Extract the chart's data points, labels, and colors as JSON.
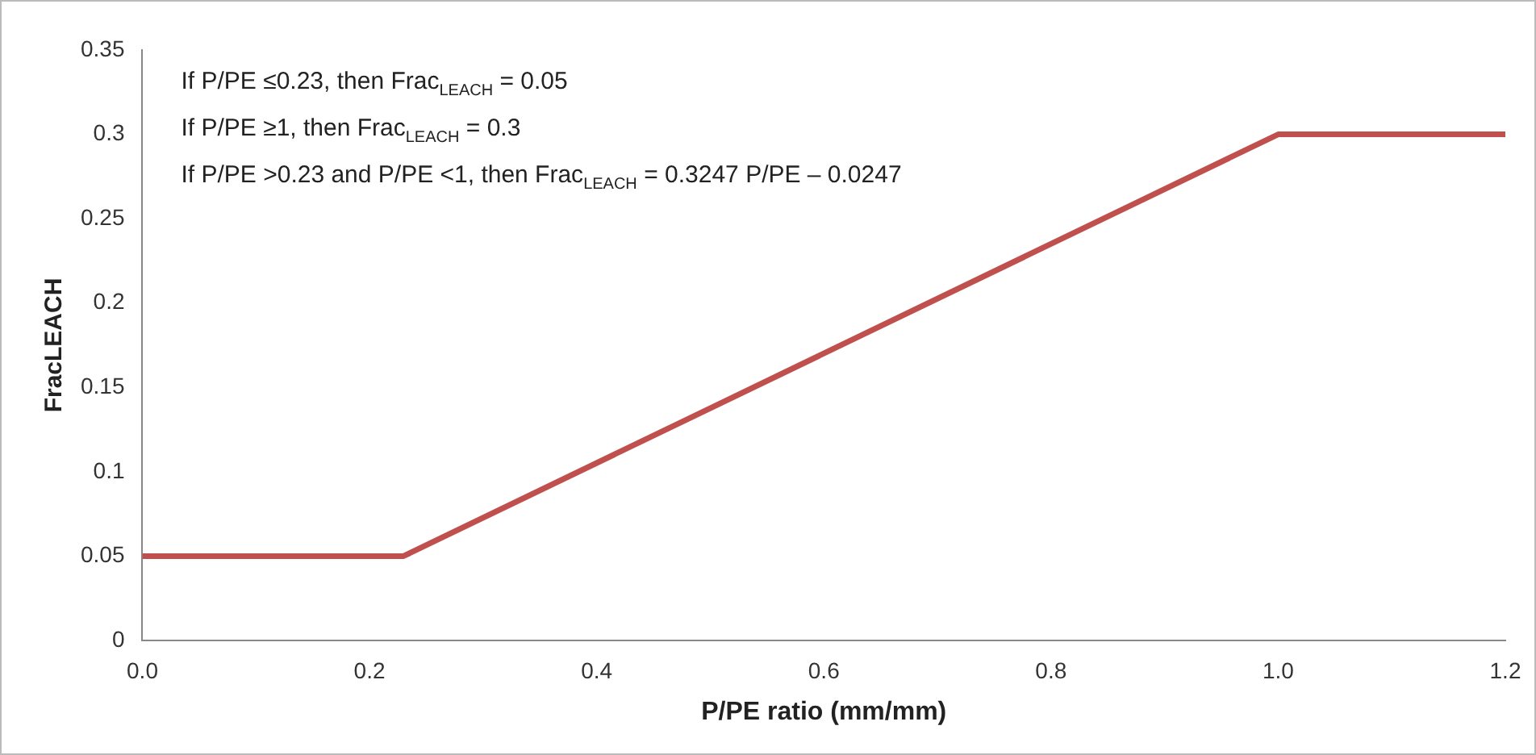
{
  "chart_data": {
    "type": "line",
    "xlabel": "P/PE ratio (mm/mm)",
    "ylabel": "FracLEACH",
    "x": [
      0,
      0.23,
      1,
      1.2
    ],
    "series": [
      {
        "color": "#c0504d",
        "values": [
          0.05,
          0.05,
          0.3,
          0.3
        ]
      }
    ],
    "xlim": [
      0,
      1.2
    ],
    "xticks": [
      {
        "value": 0,
        "label": "0.0"
      },
      {
        "value": 0.2,
        "label": "0.2"
      },
      {
        "value": 0.4,
        "label": "0.4"
      },
      {
        "value": 0.6,
        "label": "0.6"
      },
      {
        "value": 0.8,
        "label": "0.8"
      },
      {
        "value": 1,
        "label": "1.0"
      },
      {
        "value": 1.2,
        "label": "1.2"
      }
    ],
    "ylim": [
      0,
      0.35
    ],
    "yticks": [
      0,
      0.05,
      0.1,
      0.15,
      0.2,
      0.25,
      0.3,
      0.35
    ],
    "grid": false,
    "legend": false,
    "marker": "none",
    "line_style": "solid",
    "annotations": [
      "If P/PE ≤0.23, then Frac$_{LEACH}$ = 0.05",
      "If P/PE ≥1, then Frac$_{LEACH}$ = 0.3",
      "If P/PE >0.23 and P/PE <1, then Frac$_{LEACH}$ = 0.3247 P/PE – 0.0247"
    ]
  }
}
